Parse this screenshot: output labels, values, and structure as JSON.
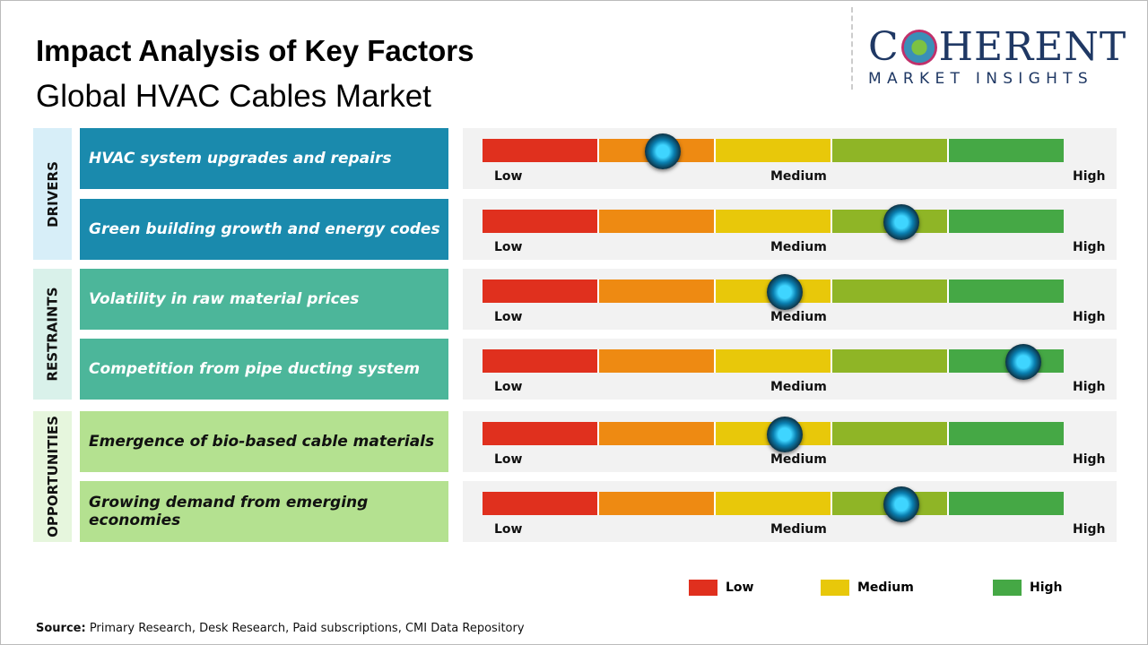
{
  "title": "Impact Analysis of Key Factors",
  "subtitle": "Global HVAC Cables Market",
  "logo": {
    "main_left": "C",
    "main_right": "HERENT",
    "sub": "MARKET INSIGHTS"
  },
  "scale": {
    "low": "Low",
    "medium": "Medium",
    "high": "High"
  },
  "colors": {
    "segments": [
      "#e0301e",
      "#ee8a12",
      "#e8c80a",
      "#8fb526",
      "#45a845"
    ],
    "drivers": "#1a8aad",
    "restraints": "#4cb69a",
    "opportunities": "#b4e190"
  },
  "chart_data": {
    "type": "gauge",
    "scale_range": [
      0,
      1
    ],
    "categories": [
      {
        "name": "DRIVERS",
        "factors": [
          {
            "label": "HVAC system upgrades and repairs",
            "impact": 0.31
          },
          {
            "label": "Green building growth and energy codes",
            "impact": 0.72
          }
        ]
      },
      {
        "name": "RESTRAINTS",
        "factors": [
          {
            "label": "Volatility in raw material prices",
            "impact": 0.52
          },
          {
            "label": "Competition from pipe ducting system",
            "impact": 0.93
          }
        ]
      },
      {
        "name": "OPPORTUNITIES",
        "factors": [
          {
            "label": "Emergence of bio-based cable materials",
            "impact": 0.52
          },
          {
            "label": "Growing demand from emerging economies",
            "impact": 0.72
          }
        ]
      }
    ],
    "legend": [
      {
        "label": "Low",
        "color": "#e0301e"
      },
      {
        "label": "Medium",
        "color": "#e8c80a"
      },
      {
        "label": "High",
        "color": "#45a845"
      }
    ]
  },
  "source": {
    "label": "Source:",
    "text": " Primary Research, Desk Research, Paid subscriptions, CMI Data Repository"
  }
}
